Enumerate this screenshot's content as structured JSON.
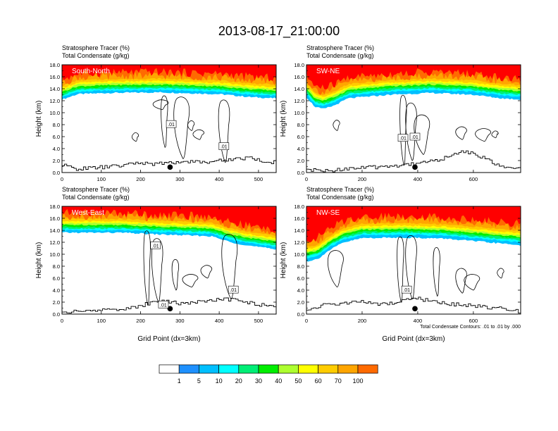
{
  "title": "2013-08-17_21:00:00",
  "colors": {
    "scale": [
      "#ffffff",
      "#1e90ff",
      "#00bfff",
      "#00ffff",
      "#00ee76",
      "#00ee00",
      "#adff2f",
      "#ffff00",
      "#ffcc00",
      "#ffa500",
      "#ff6a00",
      "#ff0000"
    ],
    "frame": "#000000",
    "contour": "#000000"
  },
  "chart_data": [
    {
      "type": "heatmap",
      "panel_label": "South-North",
      "field_label": "Stratosphere Tracer   (%)",
      "overlay_label": "Total Condensate   (g/kg)",
      "ylabel": "Height (km)",
      "xlabel": "",
      "xlim": [
        0,
        545
      ],
      "ylim": [
        0,
        18
      ],
      "xticks": [
        "0",
        "100",
        "200",
        "300",
        "400",
        "500"
      ],
      "xtick_values": [
        0,
        100,
        200,
        300,
        400,
        500
      ],
      "yticks": [
        "0.0",
        "2.0",
        "4.0",
        "6.0",
        "8.0",
        "10.0",
        "12.0",
        "14.0",
        "16.0",
        "18.0"
      ],
      "tracer_base_km": [
        [
          0,
          12.2
        ],
        [
          40,
          13.1
        ],
        [
          120,
          13.3
        ],
        [
          250,
          13.4
        ],
        [
          400,
          13.1
        ],
        [
          480,
          12.6
        ],
        [
          545,
          12.4
        ]
      ],
      "layers": [
        {
          "level": 1,
          "offset_km": 0.0
        },
        {
          "level": 5,
          "offset_km": 0.4
        },
        {
          "level": 10,
          "offset_km": 0.7
        },
        {
          "level": 20,
          "offset_km": 1.0
        },
        {
          "level": 30,
          "offset_km": 1.3
        },
        {
          "level": 40,
          "offset_km": 1.6
        },
        {
          "level": 50,
          "offset_km": 1.9
        },
        {
          "level": 60,
          "offset_km": 2.3
        },
        {
          "level": 70,
          "offset_km": 2.8
        },
        {
          "level": 100,
          "offset_km": 3.4
        }
      ],
      "terrain_km": [
        [
          0,
          1.2
        ],
        [
          40,
          0.6
        ],
        [
          80,
          0.8
        ],
        [
          120,
          1.0
        ],
        [
          160,
          1.2
        ],
        [
          190,
          1.7
        ],
        [
          230,
          1.4
        ],
        [
          270,
          1.6
        ],
        [
          320,
          1.9
        ],
        [
          360,
          1.7
        ],
        [
          400,
          2.0
        ],
        [
          440,
          2.3
        ],
        [
          480,
          2.5
        ],
        [
          510,
          1.8
        ],
        [
          545,
          1.7
        ]
      ],
      "marker": {
        "x": 275,
        "y_km": 0.9
      },
      "contour_labels": [
        {
          "text": ".01",
          "x": 278,
          "y_km": 8.1
        },
        {
          "text": ".01",
          "x": 412,
          "y_km": 4.4
        }
      ],
      "cloud_contours": [
        [
          262,
          4.2,
          12.7
        ],
        [
          415,
          1.7,
          12.0
        ],
        [
          308,
          2.3,
          12.5
        ],
        [
          188,
          5.2,
          6.5
        ],
        [
          350,
          5.5,
          7.0
        ],
        [
          255,
          10.5,
          12.0
        ],
        [
          330,
          7.0,
          8.5
        ]
      ]
    },
    {
      "type": "heatmap",
      "panel_label": "SW-NE",
      "field_label": "Stratosphere Tracer   (%)",
      "overlay_label": "Total Condensate   (g/kg)",
      "ylabel": "Height (km)",
      "xlabel": "",
      "xlim": [
        0,
        770
      ],
      "ylim": [
        0,
        18
      ],
      "xticks": [
        "0",
        "200",
        "400",
        "600"
      ],
      "xtick_values": [
        0,
        200,
        400,
        600
      ],
      "yticks": [
        "0.0",
        "2.0",
        "4.0",
        "6.0",
        "8.0",
        "10.0",
        "12.0",
        "14.0",
        "16.0",
        "18.0"
      ],
      "tracer_base_km": [
        [
          0,
          12.6
        ],
        [
          30,
          11.0
        ],
        [
          60,
          10.6
        ],
        [
          100,
          11.2
        ],
        [
          150,
          12.4
        ],
        [
          300,
          13.0
        ],
        [
          450,
          13.3
        ],
        [
          600,
          13.0
        ],
        [
          700,
          12.4
        ],
        [
          770,
          12.2
        ]
      ],
      "layers": [
        {
          "level": 1,
          "offset_km": 0.0
        },
        {
          "level": 5,
          "offset_km": 0.5
        },
        {
          "level": 10,
          "offset_km": 0.8
        },
        {
          "level": 20,
          "offset_km": 1.1
        },
        {
          "level": 30,
          "offset_km": 1.4
        },
        {
          "level": 40,
          "offset_km": 1.7
        },
        {
          "level": 50,
          "offset_km": 2.0
        },
        {
          "level": 60,
          "offset_km": 2.4
        },
        {
          "level": 70,
          "offset_km": 2.9
        },
        {
          "level": 100,
          "offset_km": 3.5
        }
      ],
      "terrain_km": [
        [
          0,
          0.4
        ],
        [
          80,
          0.3
        ],
        [
          150,
          0.7
        ],
        [
          250,
          0.9
        ],
        [
          330,
          1.2
        ],
        [
          400,
          1.6
        ],
        [
          480,
          2.2
        ],
        [
          520,
          2.8
        ],
        [
          560,
          3.5
        ],
        [
          600,
          3.2
        ],
        [
          650,
          2.2
        ],
        [
          690,
          1.0
        ],
        [
          770,
          0.6
        ]
      ],
      "marker": {
        "x": 390,
        "y_km": 0.9
      },
      "contour_labels": [
        {
          "text": ".01",
          "x": 347,
          "y_km": 5.8
        },
        {
          "text": ".01",
          "x": 390,
          "y_km": 6.0
        }
      ],
      "cloud_contours": [
        [
          350,
          1.2,
          12.8
        ],
        [
          380,
          2.0,
          11.5
        ],
        [
          420,
          3.0,
          9.5
        ],
        [
          110,
          7.0,
          8.6
        ],
        [
          560,
          5.5,
          7.5
        ],
        [
          640,
          5.2,
          7.2
        ],
        [
          680,
          5.8,
          6.8
        ]
      ]
    },
    {
      "type": "heatmap",
      "panel_label": "West-East",
      "field_label": "Stratosphere Tracer   (%)",
      "overlay_label": "Total Condensate   (g/kg)",
      "ylabel": "Height (km)",
      "xlabel": "Grid Point (dx=3km)",
      "xlim": [
        0,
        545
      ],
      "ylim": [
        0,
        18
      ],
      "xticks": [
        "0",
        "100",
        "200",
        "300",
        "400",
        "500"
      ],
      "xtick_values": [
        0,
        100,
        200,
        300,
        400,
        500
      ],
      "yticks": [
        "0.0",
        "2.0",
        "4.0",
        "6.0",
        "8.0",
        "10.0",
        "12.0",
        "14.0",
        "16.0",
        "18.0"
      ],
      "tracer_base_km": [
        [
          0,
          13.6
        ],
        [
          150,
          13.6
        ],
        [
          250,
          13.3
        ],
        [
          380,
          13.0
        ],
        [
          430,
          12.0
        ],
        [
          480,
          11.4
        ],
        [
          545,
          10.8
        ]
      ],
      "layers": [
        {
          "level": 1,
          "offset_km": 0.0
        },
        {
          "level": 5,
          "offset_km": 0.4
        },
        {
          "level": 10,
          "offset_km": 0.7
        },
        {
          "level": 20,
          "offset_km": 1.0
        },
        {
          "level": 30,
          "offset_km": 1.3
        },
        {
          "level": 40,
          "offset_km": 1.6
        },
        {
          "level": 50,
          "offset_km": 1.9
        },
        {
          "level": 60,
          "offset_km": 2.3
        },
        {
          "level": 70,
          "offset_km": 2.8
        },
        {
          "level": 100,
          "offset_km": 3.3
        }
      ],
      "terrain_km": [
        [
          0,
          0.3
        ],
        [
          60,
          0.5
        ],
        [
          120,
          0.8
        ],
        [
          180,
          1.0
        ],
        [
          220,
          1.8
        ],
        [
          260,
          2.2
        ],
        [
          300,
          1.8
        ],
        [
          350,
          2.1
        ],
        [
          420,
          2.5
        ],
        [
          460,
          2.0
        ],
        [
          500,
          1.6
        ],
        [
          545,
          1.3
        ]
      ],
      "marker": {
        "x": 275,
        "y_km": 0.9
      },
      "contour_labels": [
        {
          "text": ".01",
          "x": 238,
          "y_km": 11.5
        },
        {
          "text": ".01",
          "x": 258,
          "y_km": 1.6
        },
        {
          "text": ".01",
          "x": 436,
          "y_km": 4.1
        }
      ],
      "cloud_contours": [
        [
          218,
          1.5,
          13.8
        ],
        [
          245,
          2.0,
          12.5
        ],
        [
          430,
          2.5,
          13.2
        ],
        [
          290,
          4.0,
          9.0
        ],
        [
          370,
          6.0,
          8.0
        ],
        [
          330,
          4.5,
          6.5
        ]
      ]
    },
    {
      "type": "heatmap",
      "panel_label": "NW-SE",
      "field_label": "Stratosphere Tracer   (%)",
      "overlay_label": "Total Condensate   (g/kg)",
      "ylabel": "Height (km)",
      "xlabel": "Grid Point (dx=3km)",
      "footnote": "Total Condensate Contours: .01 to .01 by .000",
      "xlim": [
        0,
        770
      ],
      "ylim": [
        0,
        18
      ],
      "xticks": [
        "0",
        "200",
        "400",
        "600"
      ],
      "xtick_values": [
        0,
        200,
        400,
        600
      ],
      "yticks": [
        "0.0",
        "2.0",
        "4.0",
        "6.0",
        "8.0",
        "10.0",
        "12.0",
        "14.0",
        "16.0",
        "18.0"
      ],
      "tracer_base_km": [
        [
          0,
          8.8
        ],
        [
          40,
          9.2
        ],
        [
          80,
          10.6
        ],
        [
          130,
          11.9
        ],
        [
          200,
          12.7
        ],
        [
          350,
          12.8
        ],
        [
          500,
          12.6
        ],
        [
          650,
          12.0
        ],
        [
          770,
          11.5
        ]
      ],
      "layers": [
        {
          "level": 1,
          "offset_km": 0.0
        },
        {
          "level": 5,
          "offset_km": 0.5
        },
        {
          "level": 10,
          "offset_km": 0.8
        },
        {
          "level": 20,
          "offset_km": 1.1
        },
        {
          "level": 30,
          "offset_km": 1.4
        },
        {
          "level": 40,
          "offset_km": 1.7
        },
        {
          "level": 50,
          "offset_km": 2.0
        },
        {
          "level": 60,
          "offset_km": 2.4
        },
        {
          "level": 70,
          "offset_km": 3.0
        },
        {
          "level": 100,
          "offset_km": 3.6
        }
      ],
      "terrain_km": [
        [
          0,
          0.6
        ],
        [
          60,
          1.5
        ],
        [
          120,
          1.8
        ],
        [
          200,
          2.0
        ],
        [
          280,
          1.6
        ],
        [
          340,
          2.2
        ],
        [
          400,
          2.6
        ],
        [
          460,
          2.0
        ],
        [
          540,
          1.6
        ],
        [
          620,
          1.3
        ],
        [
          700,
          0.9
        ],
        [
          770,
          0.4
        ]
      ],
      "marker": {
        "x": 390,
        "y_km": 0.9
      },
      "contour_labels": [
        {
          "text": ".01",
          "x": 360,
          "y_km": 4.1
        }
      ],
      "cloud_contours": [
        [
          340,
          2.0,
          12.8
        ],
        [
          380,
          2.5,
          13.0
        ],
        [
          110,
          4.5,
          10.5
        ],
        [
          470,
          3.0,
          11.0
        ],
        [
          560,
          3.5,
          7.5
        ],
        [
          600,
          4.0,
          6.5
        ],
        [
          700,
          6.0,
          7.5
        ]
      ]
    }
  ],
  "colorbar": {
    "labels": [
      "1",
      "5",
      "10",
      "20",
      "30",
      "40",
      "50",
      "60",
      "70",
      "100"
    ]
  }
}
